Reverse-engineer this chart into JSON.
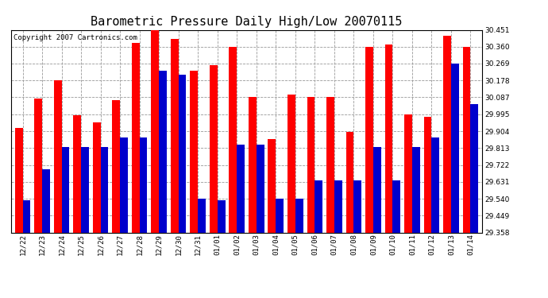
{
  "title": "Barometric Pressure Daily High/Low 20070115",
  "copyright": "Copyright 2007 Cartronics.com",
  "categories": [
    "12/22",
    "12/23",
    "12/24",
    "12/25",
    "12/26",
    "12/27",
    "12/28",
    "12/29",
    "12/30",
    "12/31",
    "01/01",
    "01/02",
    "01/03",
    "01/04",
    "01/05",
    "01/06",
    "01/07",
    "01/08",
    "01/09",
    "01/10",
    "01/11",
    "01/12",
    "01/13",
    "01/14"
  ],
  "highs": [
    29.92,
    30.08,
    30.18,
    29.99,
    29.95,
    30.07,
    30.38,
    30.451,
    30.4,
    30.23,
    30.26,
    30.36,
    30.09,
    29.86,
    30.1,
    30.09,
    30.09,
    29.9,
    30.36,
    30.37,
    29.995,
    29.98,
    30.42,
    30.36
  ],
  "lows": [
    29.53,
    29.7,
    29.82,
    29.82,
    29.82,
    29.87,
    29.87,
    30.23,
    30.21,
    29.54,
    29.53,
    29.83,
    29.83,
    29.54,
    29.54,
    29.64,
    29.64,
    29.64,
    29.82,
    29.64,
    29.82,
    29.87,
    30.27,
    30.05
  ],
  "high_color": "#ff0000",
  "low_color": "#0000cc",
  "bg_color": "#ffffff",
  "grid_color": "#999999",
  "ymin": 29.358,
  "ymax": 30.451,
  "yticks": [
    29.358,
    29.449,
    29.54,
    29.631,
    29.722,
    29.813,
    29.904,
    29.995,
    30.087,
    30.178,
    30.269,
    30.36,
    30.451
  ],
  "title_fontsize": 11,
  "copyright_fontsize": 6.5,
  "tick_fontsize": 6.5,
  "bar_width": 0.4
}
